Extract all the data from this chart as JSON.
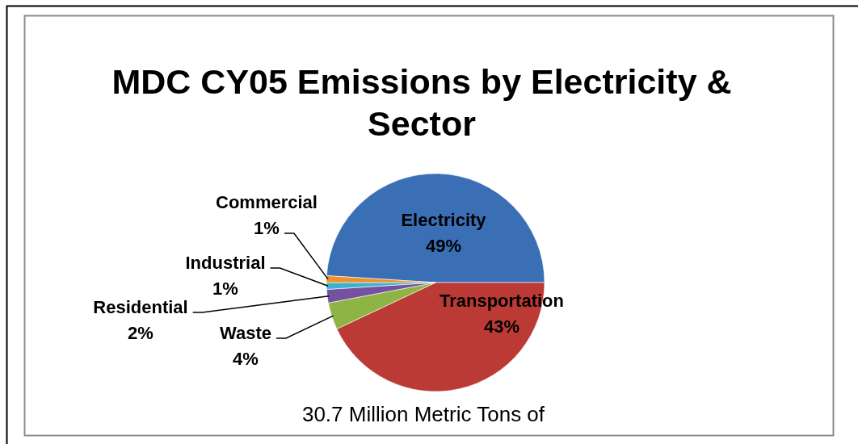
{
  "chart_data": {
    "type": "pie",
    "title": "MDC CY05 Emissions by Electricity & Sector",
    "categories": [
      "Electricity",
      "Transportation",
      "Waste",
      "Residential",
      "Industrial",
      "Commercial"
    ],
    "values": [
      49,
      43,
      4,
      2,
      1,
      1
    ],
    "value_labels": [
      "49%",
      "43%",
      "4%",
      "2%",
      "1%",
      "1%"
    ],
    "colors": [
      "#3a6fb5",
      "#bc3a36",
      "#8db444",
      "#7552a0",
      "#3ab2d0",
      "#f0902a"
    ],
    "annotations": [
      "30.7 Million Metric Tons of"
    ]
  }
}
